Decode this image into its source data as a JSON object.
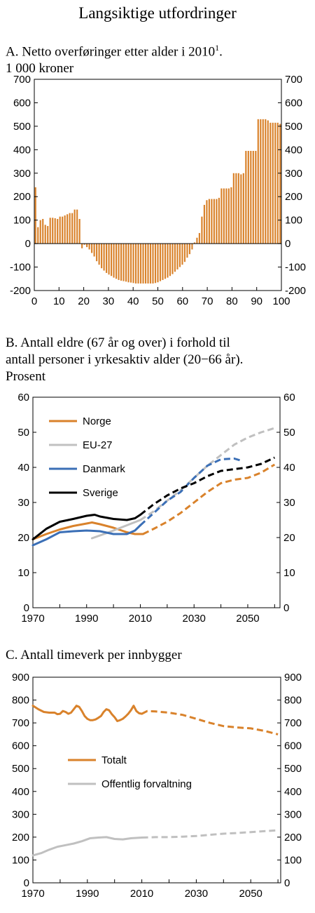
{
  "page": {
    "title": "Langsiktige utfordringer"
  },
  "colors": {
    "orange": "#d9822b",
    "grey": "#c0c0c0",
    "blue": "#3b6fb6",
    "black": "#000000"
  },
  "panel_a": {
    "title_line1": "A.  Netto overføringer etter alder i 2010",
    "title_sup": "1",
    "title_suffix": ".",
    "title_line2": "1 000 kroner"
  },
  "panel_b": {
    "title_line1": "B.  Antall eldre (67 år og over) i forhold til",
    "title_line2": "antall personer i yrkesaktiv alder (20−66 år).",
    "title_line3": "Prosent"
  },
  "panel_c": {
    "title_line1": "C.  Antall timeverk per innbygger"
  },
  "chart_data": [
    {
      "type": "bar",
      "title": "A.  Netto overføringer etter alder i 2010",
      "ylabel": "1 000 kroner",
      "ylim": [
        -200,
        700
      ],
      "yticks": [
        -200,
        -100,
        0,
        100,
        200,
        300,
        400,
        500,
        600,
        700
      ],
      "xlim": [
        0,
        100
      ],
      "xticks": [
        0,
        10,
        20,
        30,
        40,
        50,
        60,
        70,
        80,
        90,
        100
      ],
      "x": [
        0,
        1,
        2,
        3,
        4,
        5,
        6,
        7,
        8,
        9,
        10,
        11,
        12,
        13,
        14,
        15,
        16,
        17,
        18,
        19,
        20,
        21,
        22,
        23,
        24,
        25,
        26,
        27,
        28,
        29,
        30,
        31,
        32,
        33,
        34,
        35,
        36,
        37,
        38,
        39,
        40,
        41,
        42,
        43,
        44,
        45,
        46,
        47,
        48,
        49,
        50,
        51,
        52,
        53,
        54,
        55,
        56,
        57,
        58,
        59,
        60,
        61,
        62,
        63,
        64,
        65,
        66,
        67,
        68,
        69,
        70,
        71,
        72,
        73,
        74,
        75,
        76,
        77,
        78,
        79,
        80,
        81,
        82,
        83,
        84,
        85,
        86,
        87,
        88,
        89,
        90,
        91,
        92,
        93,
        94,
        95,
        96,
        97,
        98,
        99,
        100
      ],
      "values": [
        240,
        70,
        100,
        105,
        80,
        75,
        110,
        110,
        108,
        105,
        115,
        115,
        120,
        125,
        130,
        130,
        145,
        145,
        105,
        -20,
        -5,
        -15,
        -25,
        -40,
        -55,
        -75,
        -90,
        -105,
        -115,
        -125,
        -132,
        -138,
        -145,
        -150,
        -155,
        -158,
        -160,
        -162,
        -165,
        -166,
        -168,
        -170,
        -170,
        -170,
        -170,
        -170,
        -170,
        -170,
        -170,
        -168,
        -165,
        -160,
        -155,
        -150,
        -145,
        -138,
        -130,
        -120,
        -110,
        -100,
        -90,
        -78,
        -60,
        -45,
        -25,
        5,
        25,
        45,
        115,
        165,
        185,
        190,
        190,
        190,
        190,
        195,
        235,
        235,
        235,
        235,
        240,
        300,
        300,
        300,
        295,
        300,
        395,
        395,
        395,
        395,
        395,
        530,
        530,
        530,
        530,
        525,
        515,
        515,
        515,
        515,
        510
      ]
    },
    {
      "type": "line",
      "title": "B.  Antall eldre (67 år og over) i forhold til antall personer i yrkesaktiv alder (20−66 år).",
      "ylabel": "Prosent",
      "ylim": [
        0,
        60
      ],
      "yticks": [
        0,
        10,
        20,
        30,
        40,
        50,
        60
      ],
      "xlim": [
        1970,
        2062
      ],
      "xticks": [
        1970,
        1990,
        2010,
        2030,
        2050
      ],
      "legend": "top-left",
      "series": [
        {
          "name": "Norge",
          "color": "#d9822b",
          "historical": [
            [
              1970,
              19.5
            ],
            [
              1975,
              21
            ],
            [
              1980,
              22.3
            ],
            [
              1985,
              23.3
            ],
            [
              1990,
              24
            ],
            [
              1992,
              24.3
            ],
            [
              1995,
              23.8
            ],
            [
              2000,
              22.8
            ],
            [
              2005,
              21.5
            ],
            [
              2008,
              21
            ],
            [
              2011,
              21
            ]
          ],
          "projection": [
            [
              2011,
              21
            ],
            [
              2015,
              22.5
            ],
            [
              2020,
              24.5
            ],
            [
              2025,
              27
            ],
            [
              2030,
              30
            ],
            [
              2035,
              33
            ],
            [
              2040,
              35.5
            ],
            [
              2045,
              36.5
            ],
            [
              2050,
              37
            ],
            [
              2055,
              38.5
            ],
            [
              2060,
              40.8
            ]
          ]
        },
        {
          "name": "EU-27",
          "color": "#c0c0c0",
          "historical": [
            [
              1992,
              19.8
            ],
            [
              1995,
              20.6
            ],
            [
              2000,
              22
            ],
            [
              2005,
              23.5
            ],
            [
              2010,
              25
            ]
          ],
          "projection": [
            [
              2010,
              25
            ],
            [
              2015,
              27.5
            ],
            [
              2020,
              30.5
            ],
            [
              2025,
              33.5
            ],
            [
              2030,
              37
            ],
            [
              2035,
              40.5
            ],
            [
              2040,
              43.5
            ],
            [
              2045,
              46.5
            ],
            [
              2050,
              48.5
            ],
            [
              2055,
              50
            ],
            [
              2060,
              51.2
            ]
          ]
        },
        {
          "name": "Danmark",
          "color": "#3b6fb6",
          "historical": [
            [
              1970,
              17.8
            ],
            [
              1975,
              19.5
            ],
            [
              1980,
              21.5
            ],
            [
              1985,
              21.8
            ],
            [
              1990,
              22
            ],
            [
              1995,
              21.8
            ],
            [
              2000,
              21
            ],
            [
              2005,
              21
            ],
            [
              2008,
              22
            ],
            [
              2010,
              23.5
            ]
          ],
          "projection": [
            [
              2010,
              23.5
            ],
            [
              2015,
              27
            ],
            [
              2020,
              30.5
            ],
            [
              2025,
              33
            ],
            [
              2030,
              37
            ],
            [
              2035,
              40.5
            ],
            [
              2040,
              42.3
            ],
            [
              2045,
              42.5
            ],
            [
              2048,
              41.8
            ]
          ]
        },
        {
          "name": "Sverige",
          "color": "#000000",
          "historical": [
            [
              1970,
              19.5
            ],
            [
              1975,
              22.5
            ],
            [
              1980,
              24.5
            ],
            [
              1985,
              25.3
            ],
            [
              1990,
              26.2
            ],
            [
              1993,
              26.5
            ],
            [
              1995,
              26
            ],
            [
              2000,
              25.3
            ],
            [
              2005,
              25
            ],
            [
              2008,
              25.5
            ],
            [
              2010,
              26.5
            ]
          ],
          "projection": [
            [
              2010,
              26.5
            ],
            [
              2015,
              29.5
            ],
            [
              2020,
              32
            ],
            [
              2025,
              34
            ],
            [
              2030,
              35.5
            ],
            [
              2035,
              37.5
            ],
            [
              2040,
              39
            ],
            [
              2045,
              39.5
            ],
            [
              2050,
              40
            ],
            [
              2055,
              41
            ],
            [
              2060,
              42.8
            ]
          ]
        }
      ]
    },
    {
      "type": "line",
      "title": "C.  Antall timeverk per innbygger",
      "ylim": [
        0,
        900
      ],
      "yticks": [
        0,
        100,
        200,
        300,
        400,
        500,
        600,
        700,
        800,
        900
      ],
      "xlim": [
        1970,
        2061
      ],
      "xticks": [
        1970,
        1990,
        2010,
        2030,
        2050
      ],
      "legend": "center-left",
      "series": [
        {
          "name": "Totalt",
          "color": "#d9822b",
          "historical": [
            [
              1970,
              775
            ],
            [
              1972,
              760
            ],
            [
              1974,
              748
            ],
            [
              1976,
              745
            ],
            [
              1978,
              745
            ],
            [
              1979,
              738
            ],
            [
              1980,
              740
            ],
            [
              1981,
              752
            ],
            [
              1982,
              748
            ],
            [
              1983,
              740
            ],
            [
              1984,
              745
            ],
            [
              1985,
              760
            ],
            [
              1986,
              775
            ],
            [
              1987,
              770
            ],
            [
              1988,
              752
            ],
            [
              1989,
              730
            ],
            [
              1990,
              718
            ],
            [
              1991,
              712
            ],
            [
              1992,
              712
            ],
            [
              1993,
              715
            ],
            [
              1994,
              722
            ],
            [
              1995,
              730
            ],
            [
              1996,
              748
            ],
            [
              1997,
              760
            ],
            [
              1998,
              755
            ],
            [
              1999,
              738
            ],
            [
              2000,
              725
            ],
            [
              2001,
              708
            ],
            [
              2002,
              712
            ],
            [
              2003,
              718
            ],
            [
              2004,
              728
            ],
            [
              2005,
              740
            ],
            [
              2006,
              755
            ],
            [
              2007,
              775
            ],
            [
              2008,
              752
            ],
            [
              2009,
              742
            ],
            [
              2010,
              740
            ]
          ],
          "projection": [
            [
              2010,
              740
            ],
            [
              2012,
              752
            ],
            [
              2015,
              750
            ],
            [
              2020,
              745
            ],
            [
              2025,
              735
            ],
            [
              2030,
              718
            ],
            [
              2035,
              700
            ],
            [
              2040,
              686
            ],
            [
              2045,
              680
            ],
            [
              2050,
              676
            ],
            [
              2055,
              665
            ],
            [
              2060,
              650
            ]
          ]
        },
        {
          "name": "Offentlig forvaltning",
          "color": "#c0c0c0",
          "historical": [
            [
              1970,
              120
            ],
            [
              1973,
              130
            ],
            [
              1976,
              145
            ],
            [
              1979,
              158
            ],
            [
              1982,
              165
            ],
            [
              1985,
              172
            ],
            [
              1988,
              182
            ],
            [
              1991,
              195
            ],
            [
              1994,
              198
            ],
            [
              1997,
              200
            ],
            [
              2000,
              192
            ],
            [
              2003,
              190
            ],
            [
              2006,
              195
            ],
            [
              2010,
              198
            ]
          ],
          "projection": [
            [
              2010,
              198
            ],
            [
              2015,
              200
            ],
            [
              2020,
              200
            ],
            [
              2025,
              202
            ],
            [
              2030,
              205
            ],
            [
              2035,
              210
            ],
            [
              2040,
              215
            ],
            [
              2045,
              218
            ],
            [
              2050,
              222
            ],
            [
              2055,
              226
            ],
            [
              2060,
              230
            ]
          ]
        }
      ]
    }
  ]
}
